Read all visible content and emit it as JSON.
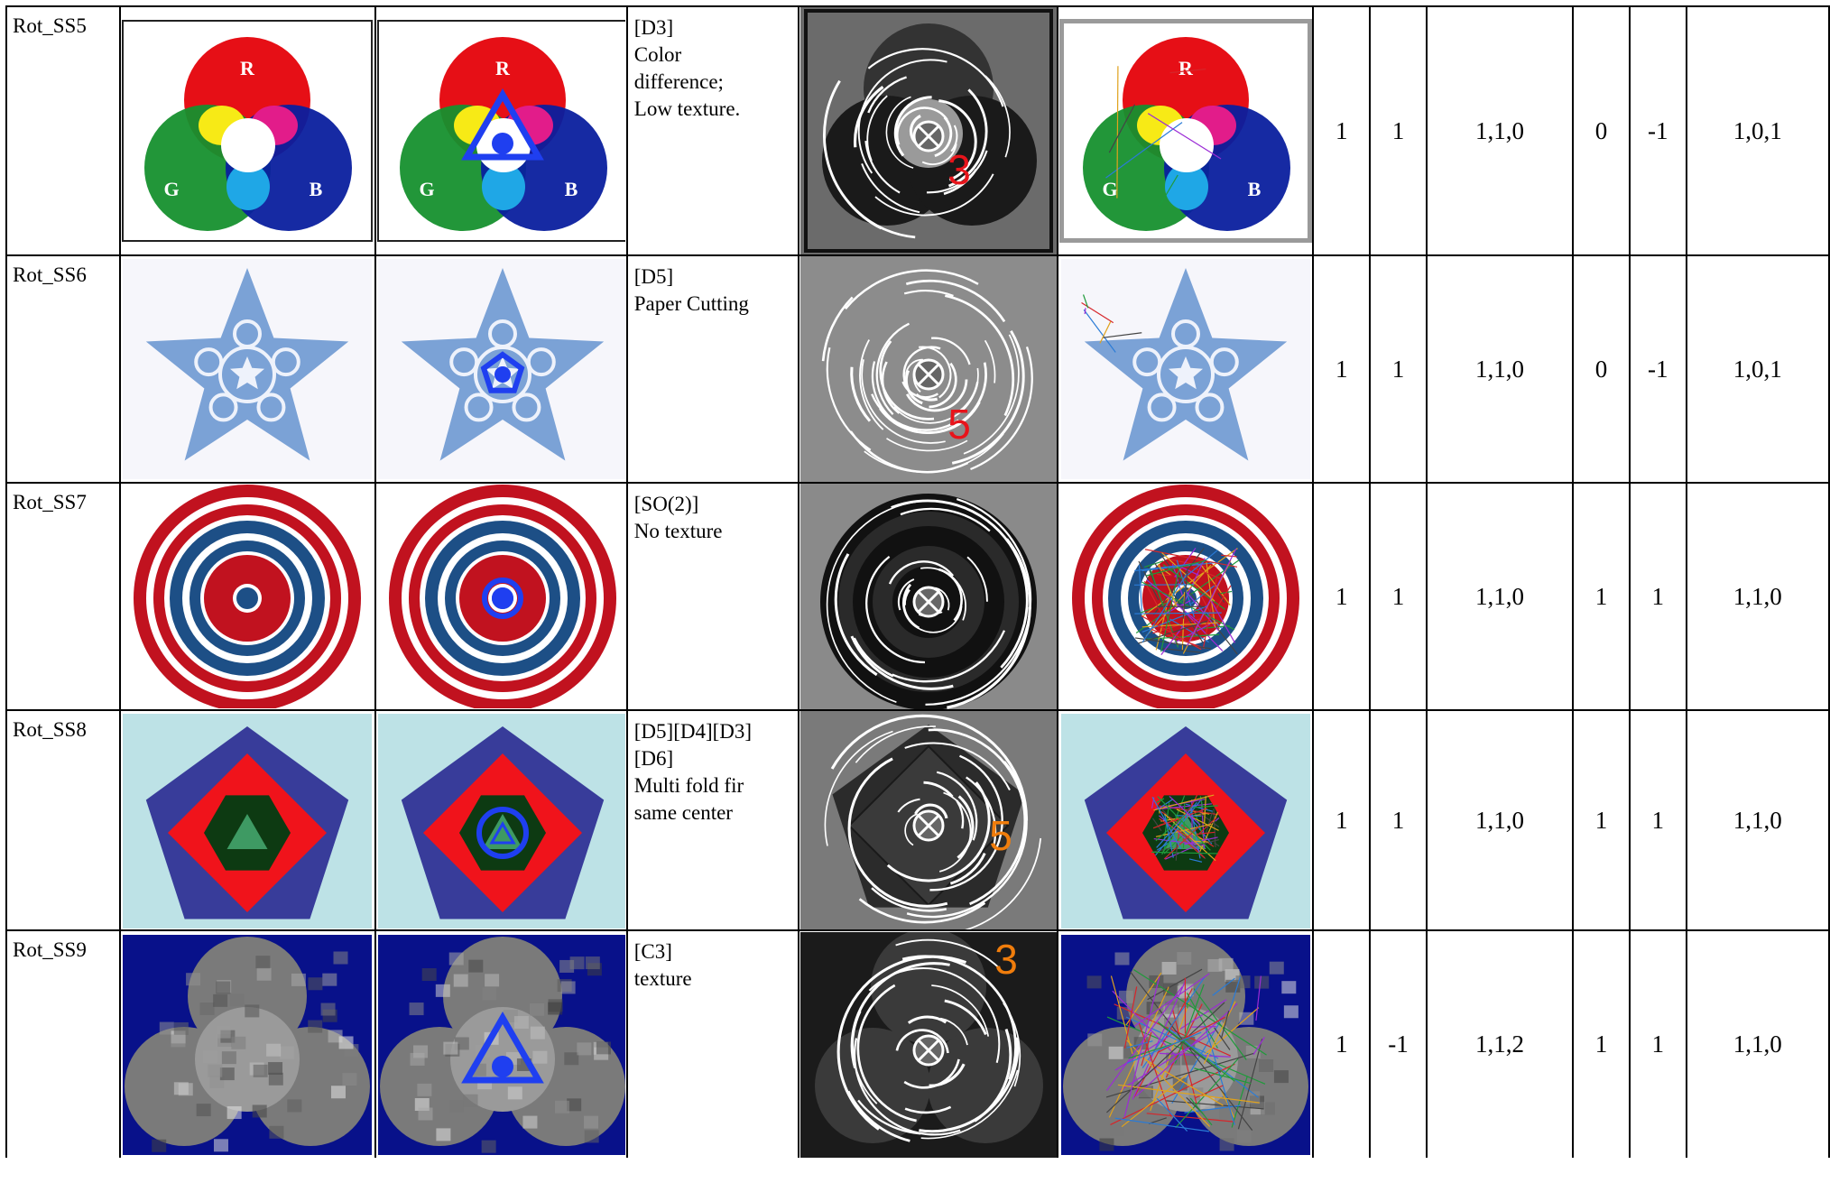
{
  "rows": [
    {
      "id": "Rot_SS5",
      "fig": "rgb",
      "desc": [
        "[D3]",
        "Color",
        "difference;",
        "Low texture."
      ],
      "fold": "3",
      "fold_color": "#e8141b",
      "values": [
        "1",
        "1",
        "1,1,0",
        "0",
        "-1",
        "1,0,1"
      ]
    },
    {
      "id": "Rot_SS6",
      "fig": "star",
      "desc": [
        "[D5]",
        "Paper Cutting"
      ],
      "fold": "5",
      "fold_color": "#e8141b",
      "values": [
        "1",
        "1",
        "1,1,0",
        "0",
        "-1",
        "1,0,1"
      ]
    },
    {
      "id": "Rot_SS7",
      "fig": "target",
      "desc": [
        "[SO(2)]",
        "No texture"
      ],
      "fold": "",
      "fold_color": "#000000",
      "values": [
        "1",
        "1",
        "1,1,0",
        "1",
        "1",
        "1,1,0"
      ]
    },
    {
      "id": "Rot_SS8",
      "fig": "pentagon",
      "desc": [
        "[D5][D4][D3]",
        "[D6]",
        "Multi fold fir",
        "same center"
      ],
      "fold": "5",
      "fold_color": "#f07d0c",
      "values": [
        "1",
        "1",
        "1,1,0",
        "1",
        "1",
        "1,1,0"
      ]
    },
    {
      "id": "Rot_SS9",
      "fig": "blob",
      "desc": [
        "[C3]",
        "texture"
      ],
      "fold": "3",
      "fold_color": "#f07d0c",
      "values": [
        "1",
        "-1",
        "1,1,2",
        "1",
        "1",
        "1,1,0"
      ]
    }
  ],
  "figure_text": {
    "rgb_r": "R",
    "rgb_g": "G",
    "rgb_b": "B"
  },
  "colors": {
    "marker_blue": "#1f3ff0",
    "rgb_red": "#e60f16",
    "rgb_green": "#16902e",
    "rgb_blue": "#0a1f9e"
  }
}
